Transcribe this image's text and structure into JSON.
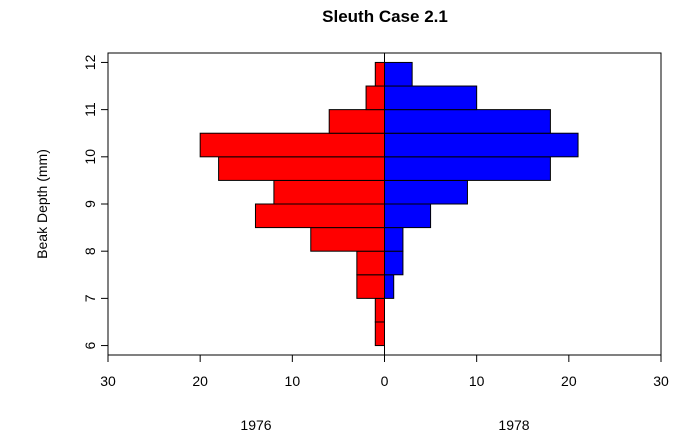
{
  "chart_data": {
    "type": "bar",
    "orientation": "horizontal",
    "title": "Sleuth Case 2.1",
    "ylabel": "Beak Depth (mm)",
    "bin_width": 0.5,
    "bins": [
      6.0,
      6.5,
      7.0,
      7.5,
      8.0,
      8.5,
      9.0,
      9.5,
      10.0,
      10.5,
      11.0,
      11.5
    ],
    "series": [
      {
        "name": "1976",
        "side": "left",
        "color": "#FF0000",
        "values": [
          1,
          1,
          3,
          3,
          8,
          14,
          12,
          18,
          20,
          6,
          2,
          1
        ]
      },
      {
        "name": "1978",
        "side": "right",
        "color": "#0000FF",
        "values": [
          0,
          0,
          1,
          2,
          2,
          5,
          9,
          18,
          21,
          18,
          10,
          3
        ]
      }
    ],
    "x_ticks": [
      {
        "value": -30,
        "label": "30"
      },
      {
        "value": -20,
        "label": "20"
      },
      {
        "value": -10,
        "label": "10"
      },
      {
        "value": 0,
        "label": "0"
      },
      {
        "value": 10,
        "label": "10"
      },
      {
        "value": 20,
        "label": "20"
      },
      {
        "value": 30,
        "label": "30"
      }
    ],
    "y_ticks": [
      {
        "value": 6,
        "label": "6"
      },
      {
        "value": 7,
        "label": "7"
      },
      {
        "value": 8,
        "label": "8"
      },
      {
        "value": 9,
        "label": "9"
      },
      {
        "value": 10,
        "label": "10"
      },
      {
        "value": 11,
        "label": "11"
      },
      {
        "value": 12,
        "label": "12"
      }
    ],
    "xlim": [
      -30,
      30
    ],
    "ylim": [
      5.8,
      12.2
    ],
    "grid": false,
    "legend": "none"
  }
}
